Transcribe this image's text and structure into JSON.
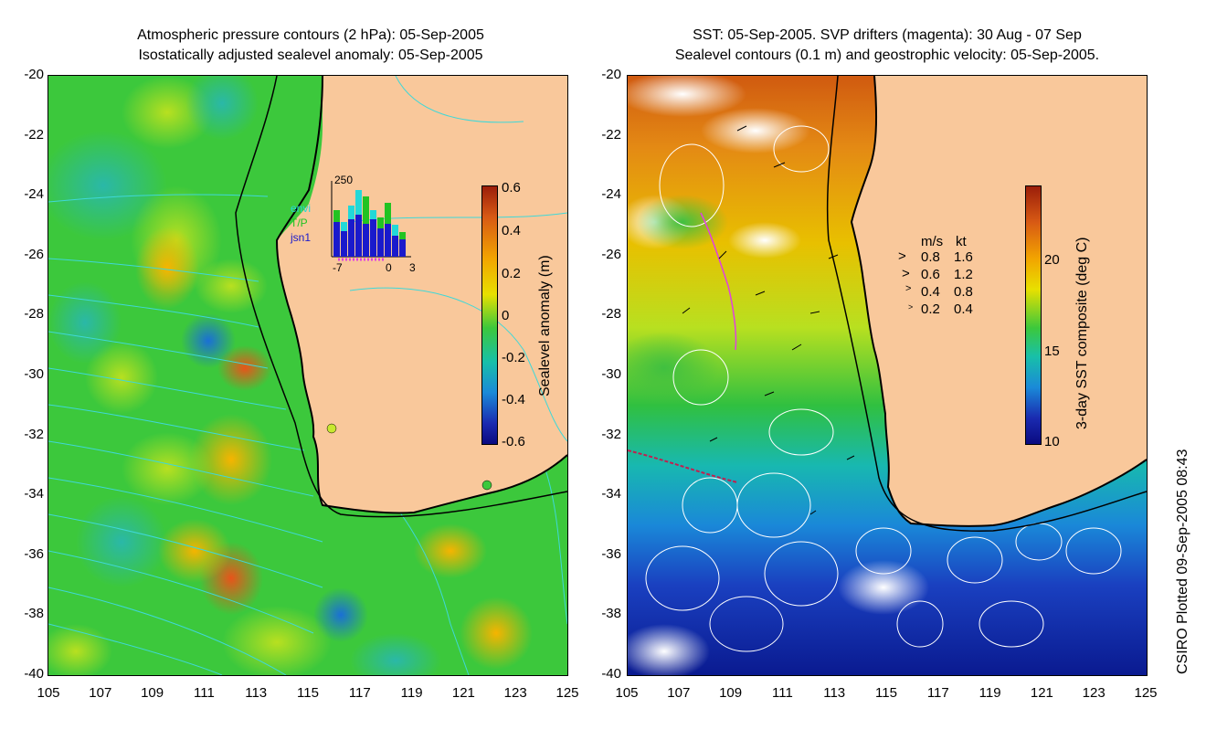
{
  "left_panel": {
    "title_line1": "Atmospheric pressure contours (2 hPa): 05-Sep-2005",
    "title_line2": "Isostatically adjusted sealevel anomaly: 05-Sep-2005",
    "colorbar_label": "Sealevel anomaly (m)",
    "colorbar_ticks": [
      "0.6",
      "0.4",
      "0.2",
      "0",
      "-0.2",
      "-0.4",
      "-0.6"
    ],
    "inset": {
      "ymax": "250",
      "xticks": [
        "-7",
        "0",
        "3"
      ],
      "satellites": [
        {
          "name": "envi",
          "color": "#22d8d8"
        },
        {
          "name": "T/P",
          "color": "#22c322"
        },
        {
          "name": "jsn1",
          "color": "#1a1acc"
        }
      ]
    }
  },
  "right_panel": {
    "title_line1": "SST: 05-Sep-2005. SVP drifters (magenta): 30 Aug - 07 Sep",
    "title_line2": "Sealevel contours (0.1 m) and geostrophic velocity: 05-Sep-2005.",
    "colorbar_label": "3-day SST composite (deg C)",
    "colorbar_ticks": [
      "20",
      "15",
      "10"
    ],
    "velocity_legend": {
      "header_ms": "m/s",
      "header_kt": "kt",
      "rows": [
        {
          "ms": "0.8",
          "kt": "1.6"
        },
        {
          "ms": "0.6",
          "kt": "1.2"
        },
        {
          "ms": "0.4",
          "kt": "0.8"
        },
        {
          "ms": "0.2",
          "kt": "0.4"
        }
      ]
    }
  },
  "y_ticks": [
    "-20",
    "-22",
    "-24",
    "-26",
    "-28",
    "-30",
    "-32",
    "-34",
    "-36",
    "-38",
    "-40"
  ],
  "x_ticks": [
    "105",
    "107",
    "109",
    "111",
    "113",
    "115",
    "117",
    "119",
    "121",
    "123",
    "125"
  ],
  "credit": "CSIRO Plotted 09-Sep-2005 08:43",
  "colors": {
    "land": "#f9c89b",
    "coast": "#000000",
    "contour_left": "#3fd8d8",
    "contour_right": "#ffffff",
    "drifter": "#e040e0"
  }
}
